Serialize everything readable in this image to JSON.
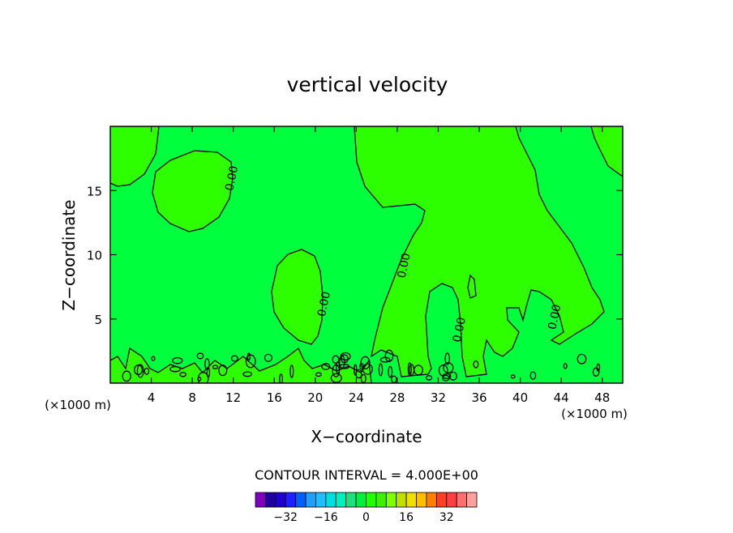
{
  "chart_data": {
    "type": "heatmap",
    "title": "vertical velocity",
    "xlabel": "X−coordinate",
    "ylabel": "Z−coordinate",
    "x_unit_left": "(×1000 m)",
    "x_unit_right": "(×1000 m)",
    "xlim": [
      0,
      50
    ],
    "ylim": [
      0,
      20
    ],
    "x_ticks": [
      4,
      8,
      12,
      16,
      20,
      24,
      28,
      32,
      36,
      40,
      44,
      48
    ],
    "y_ticks": [
      5,
      10,
      15
    ],
    "grid": false,
    "contour_labels": [
      {
        "text": "0.00",
        "x": 12.2,
        "y": 15.9
      },
      {
        "text": "0.00",
        "x": 21.2,
        "y": 6.1
      },
      {
        "text": "0.00",
        "x": 29.0,
        "y": 9.1
      },
      {
        "text": "0.00",
        "x": 34.4,
        "y": 4.1
      },
      {
        "text": "0.00",
        "x": 43.7,
        "y": 5.1
      }
    ],
    "contour_interval_text": "CONTOUR INTERVAL = 4.000E+00",
    "colorbar": {
      "colors": [
        "#7f00bf",
        "#1f00a0",
        "#1f00cf",
        "#1f1fff",
        "#005fff",
        "#1f9fff",
        "#1fbfff",
        "#00dfe0",
        "#00f0bf",
        "#1fe07f",
        "#00f03f",
        "#1fff00",
        "#3ff000",
        "#7fff00",
        "#bfe000",
        "#efe000",
        "#ffbf00",
        "#ff7f00",
        "#ff3f1f",
        "#ff3f3f",
        "#ff6f6f",
        "#ff9f9f"
      ],
      "tick_values": [
        -32,
        -16,
        0,
        16,
        32
      ],
      "tick_labels": [
        "−32",
        "−16",
        "0",
        "16",
        "32"
      ],
      "range": [
        -44,
        44
      ]
    },
    "fill_colors": {
      "background": "#00ff3c",
      "positive_region": "#2eff00"
    }
  }
}
